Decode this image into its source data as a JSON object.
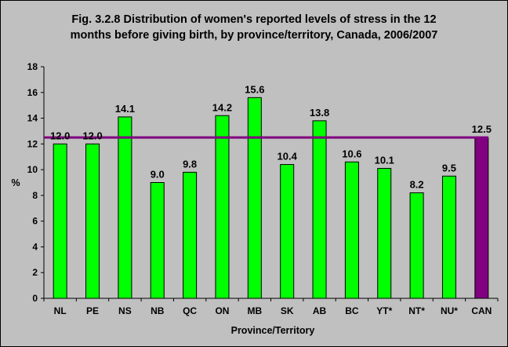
{
  "chart_data": {
    "type": "bar",
    "title_lines": [
      "Fig. 3.2.8 Distribution of women's reported levels of stress in the 12",
      "months before giving birth, by province/territory, Canada, 2006/2007"
    ],
    "xlabel": "Province/Territory",
    "ylabel": "%",
    "ylim": [
      0,
      18
    ],
    "yticks": [
      0,
      2,
      4,
      6,
      8,
      10,
      12,
      14,
      16,
      18
    ],
    "grid": false,
    "legend": "none",
    "categories": [
      "NL",
      "PE",
      "NS",
      "NB",
      "QC",
      "ON",
      "MB",
      "SK",
      "AB",
      "BC",
      "YT*",
      "NT*",
      "NU*",
      "CAN"
    ],
    "values": [
      12.0,
      12.0,
      14.1,
      9.0,
      9.8,
      14.2,
      15.6,
      10.4,
      13.8,
      10.6,
      10.1,
      8.2,
      9.5,
      12.5
    ],
    "value_labels": [
      "12.0",
      "12.0",
      "14.1",
      "9.0",
      "9.8",
      "14.2",
      "15.6",
      "10.4",
      "13.8",
      "10.6",
      "10.1",
      "8.2",
      "9.5",
      "12.5"
    ],
    "highlight_category": "CAN",
    "reference_line": 12.5,
    "colors": {
      "bar": "#00ff00",
      "highlight_bar": "#800080",
      "reference_line": "#800080",
      "plot_background": "#c0c0c0",
      "bar_outline": "#000000"
    }
  }
}
